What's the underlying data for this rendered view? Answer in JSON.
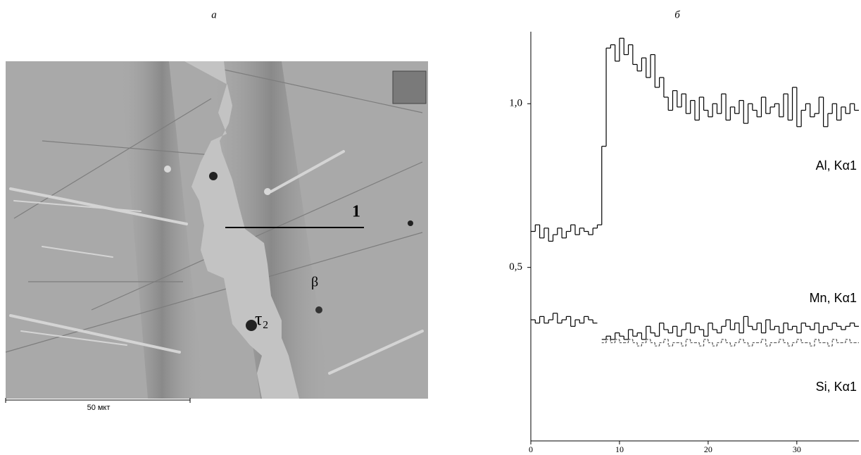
{
  "figure": {
    "panel_a": {
      "label": "а",
      "line_label": "1",
      "phase_labels": [
        "τ₂",
        "β"
      ],
      "scale_bar": "50 мкт"
    },
    "panel_b": {
      "label": "б"
    }
  },
  "chart_data": {
    "type": "step",
    "x": [
      0,
      0.5,
      1,
      1.5,
      2,
      2.5,
      3,
      3.5,
      4,
      4.5,
      5,
      5.5,
      6,
      6.5,
      7,
      7.5,
      8,
      8.5,
      9,
      9.5,
      10,
      10.5,
      11,
      11.5,
      12,
      12.5,
      13,
      13.5,
      14,
      14.5,
      15,
      15.5,
      16,
      16.5,
      17,
      17.5,
      18,
      18.5,
      19,
      19.5,
      20,
      20.5,
      21,
      21.5,
      22,
      22.5,
      23,
      23.5,
      24,
      24.5,
      25,
      25.5,
      26,
      26.5,
      27,
      27.5,
      28,
      28.5,
      29,
      29.5,
      30,
      30.5,
      31,
      31.5,
      32,
      32.5,
      33,
      33.5,
      34,
      34.5,
      35,
      35.5,
      36,
      36.5
    ],
    "series": [
      {
        "name": "Al, Kα1",
        "color": "#000000",
        "dashed": false,
        "values": [
          0.61,
          0.63,
          0.59,
          0.62,
          0.58,
          0.6,
          0.62,
          0.59,
          0.61,
          0.63,
          0.6,
          0.62,
          0.61,
          0.6,
          0.62,
          0.63,
          0.87,
          1.17,
          1.18,
          1.13,
          1.2,
          1.15,
          1.18,
          1.12,
          1.1,
          1.14,
          1.08,
          1.15,
          1.05,
          1.08,
          1.02,
          0.98,
          1.04,
          0.99,
          1.03,
          0.97,
          1.01,
          0.95,
          1.02,
          0.98,
          0.96,
          1.0,
          0.97,
          1.03,
          0.95,
          0.99,
          0.97,
          1.01,
          0.94,
          1.0,
          0.98,
          0.96,
          1.02,
          0.97,
          0.99,
          1.0,
          0.96,
          1.03,
          0.95,
          1.05,
          0.93,
          0.98,
          1.0,
          0.96,
          0.97,
          1.02,
          0.93,
          0.97,
          1.0,
          0.95,
          0.99,
          0.97,
          1.0,
          0.98
        ]
      },
      {
        "name": "Mn, Kα1",
        "color": "#000000",
        "dashed": false,
        "values": [
          0.34,
          0.33,
          0.35,
          0.33,
          0.34,
          0.36,
          0.33,
          0.34,
          0.35,
          0.32,
          0.34,
          0.33,
          0.35,
          0.34,
          0.33,
          null,
          0.28,
          0.29,
          0.28,
          0.3,
          0.29,
          0.28,
          0.31,
          0.29,
          0.3,
          0.28,
          0.32,
          0.3,
          0.29,
          0.33,
          0.31,
          0.3,
          0.32,
          0.29,
          0.31,
          0.33,
          0.3,
          0.32,
          0.31,
          0.29,
          0.33,
          0.31,
          0.3,
          0.32,
          0.34,
          0.31,
          0.33,
          0.3,
          0.35,
          0.32,
          0.31,
          0.33,
          0.3,
          0.34,
          0.31,
          0.32,
          0.3,
          0.33,
          0.31,
          0.32,
          0.3,
          0.33,
          0.32,
          0.31,
          0.33,
          0.3,
          0.32,
          0.31,
          0.33,
          0.32,
          0.31,
          0.32,
          0.33,
          0.32
        ]
      },
      {
        "name": "Si, Kα1",
        "color": "#555555",
        "dashed": true,
        "values": [
          null,
          null,
          null,
          null,
          null,
          null,
          null,
          null,
          null,
          null,
          null,
          null,
          null,
          null,
          null,
          null,
          0.27,
          0.28,
          0.27,
          0.28,
          0.27,
          0.27,
          0.28,
          0.27,
          0.26,
          0.27,
          0.28,
          0.27,
          0.26,
          0.27,
          0.28,
          0.26,
          0.27,
          0.27,
          0.26,
          0.28,
          0.27,
          0.27,
          0.26,
          0.28,
          0.27,
          0.26,
          0.27,
          0.28,
          0.27,
          0.26,
          0.27,
          0.28,
          0.27,
          0.26,
          0.27,
          0.27,
          0.28,
          0.26,
          0.27,
          0.27,
          0.28,
          0.27,
          0.26,
          0.27,
          0.28,
          0.27,
          0.27,
          0.26,
          0.28,
          0.27,
          0.27,
          0.26,
          0.28,
          0.27,
          0.27,
          0.28,
          0.27,
          0.27
        ]
      }
    ],
    "xlim": [
      0,
      37
    ],
    "ylim": [
      -0.03,
      1.22
    ],
    "xticks": [
      0,
      10,
      20,
      30
    ],
    "yticks": [
      {
        "value": 0.5,
        "label": "0,5"
      },
      {
        "value": 1.0,
        "label": "1,0"
      }
    ]
  }
}
